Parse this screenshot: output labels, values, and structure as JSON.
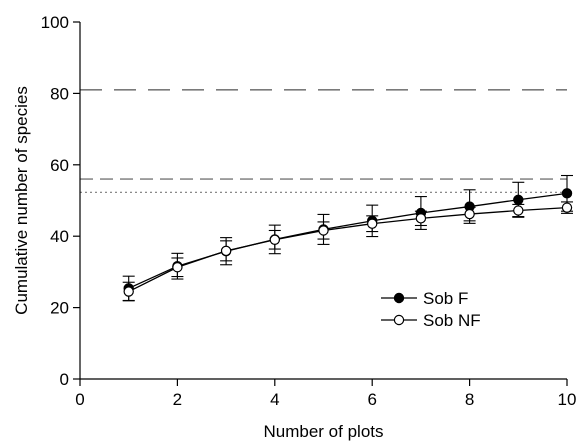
{
  "chart_data": {
    "type": "line",
    "xlabel": "Number of plots",
    "ylabel": "Cumulative number of species",
    "xlim": [
      0,
      10
    ],
    "ylim": [
      0,
      100
    ],
    "xticks": [
      0,
      2,
      4,
      6,
      8,
      10
    ],
    "yticks": [
      0,
      20,
      40,
      60,
      80,
      100
    ],
    "grid": false,
    "legend_position": "lower-right",
    "series": [
      {
        "name": "Sob F",
        "marker": "filled-circle",
        "color": "#000000",
        "x": [
          1,
          2,
          3,
          4,
          5,
          6,
          7,
          8,
          9,
          10
        ],
        "y": [
          25.4,
          31.6,
          35.8,
          39.1,
          41.9,
          44.3,
          46.5,
          48.3,
          50.2,
          52.0
        ],
        "err": [
          3.4,
          3.6,
          3.8,
          4.0,
          4.2,
          4.4,
          4.6,
          4.7,
          4.9,
          5.0
        ]
      },
      {
        "name": "Sob NF",
        "marker": "open-circle",
        "color": "#000000",
        "x": [
          1,
          2,
          3,
          4,
          5,
          6,
          7,
          8,
          9,
          10
        ],
        "y": [
          24.5,
          31.3,
          35.9,
          39.0,
          41.6,
          43.5,
          45.0,
          46.2,
          47.2,
          48.0
        ],
        "err": [
          2.6,
          2.6,
          2.8,
          2.6,
          2.4,
          2.2,
          2.0,
          1.9,
          1.7,
          1.6
        ]
      }
    ],
    "reference_lines": [
      {
        "y": 81,
        "style": "long-dash",
        "color": "#7a7a7a"
      },
      {
        "y": 56,
        "style": "dash",
        "color": "#8c8c8c"
      },
      {
        "y": 52.3,
        "style": "dotted",
        "color": "#7a7a7a"
      }
    ]
  }
}
